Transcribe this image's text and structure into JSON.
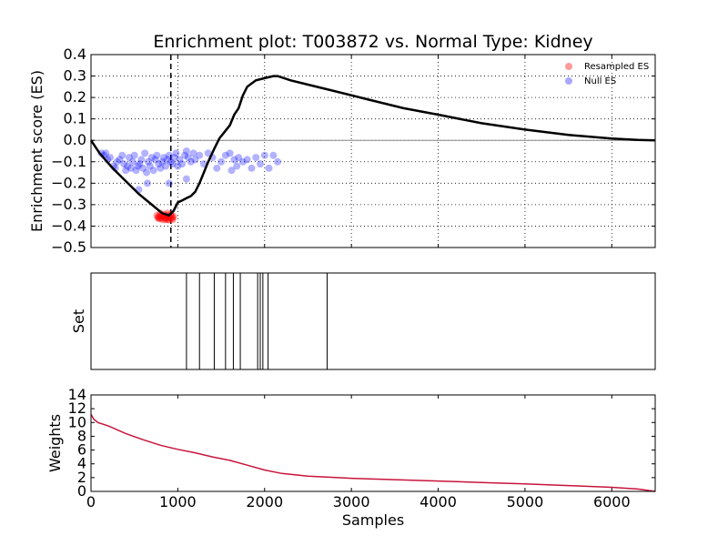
{
  "chart_data": [
    {
      "type": "line",
      "title": "Enrichment plot: T003872 vs. Normal Type: Kidney",
      "ylabel": "Enrichment score (ES)",
      "xlim": [
        0,
        6500
      ],
      "ylim": [
        -0.5,
        0.4
      ],
      "yticks": [
        "0.4",
        "0.3",
        "0.2",
        "0.1",
        "0.0",
        "−0.1",
        "−0.2",
        "−0.3",
        "−0.4",
        "−0.5"
      ],
      "ytick_values": [
        0.4,
        0.3,
        0.2,
        0.1,
        0.0,
        -0.1,
        -0.2,
        -0.3,
        -0.4,
        -0.5
      ],
      "xtick_values": [
        0,
        1000,
        2000,
        3000,
        4000,
        5000,
        6000
      ],
      "grid": true,
      "legend_position": "top-right",
      "legend": [
        {
          "label": "Resampled ES",
          "color": "#ff9a9a"
        },
        {
          "label": "Null ES",
          "color": "#8c8cff"
        }
      ],
      "vline_x": 920,
      "hline_y": 0.0,
      "es_curve": {
        "x": [
          0,
          100,
          250,
          400,
          550,
          700,
          820,
          900,
          950,
          1000,
          1050,
          1100,
          1150,
          1200,
          1250,
          1300,
          1350,
          1420,
          1480,
          1540,
          1600,
          1650,
          1700,
          1750,
          1800,
          1900,
          2000,
          2100,
          2150,
          2300,
          2500,
          2800,
          3200,
          3600,
          4000,
          4500,
          5000,
          5500,
          6000,
          6300,
          6500
        ],
        "y": [
          0.0,
          -0.06,
          -0.13,
          -0.19,
          -0.25,
          -0.3,
          -0.34,
          -0.35,
          -0.33,
          -0.29,
          -0.28,
          -0.27,
          -0.26,
          -0.24,
          -0.2,
          -0.15,
          -0.1,
          -0.04,
          0.01,
          0.04,
          0.07,
          0.12,
          0.15,
          0.21,
          0.25,
          0.28,
          0.29,
          0.3,
          0.3,
          0.28,
          0.26,
          0.23,
          0.19,
          0.15,
          0.12,
          0.08,
          0.05,
          0.025,
          0.008,
          0.002,
          0.0
        ]
      },
      "resampled_es": {
        "x": [
          760,
          770,
          780,
          790,
          800,
          810,
          820,
          830,
          840,
          850,
          860,
          870,
          880,
          890,
          900,
          910,
          920,
          930,
          940,
          950,
          800,
          840,
          880,
          920,
          780,
          860,
          900,
          940
        ],
        "y": [
          -0.35,
          -0.36,
          -0.355,
          -0.36,
          -0.365,
          -0.35,
          -0.36,
          -0.37,
          -0.355,
          -0.36,
          -0.365,
          -0.35,
          -0.36,
          -0.37,
          -0.355,
          -0.36,
          -0.35,
          -0.365,
          -0.36,
          -0.355,
          -0.34,
          -0.345,
          -0.34,
          -0.345,
          -0.365,
          -0.37,
          -0.37,
          -0.37
        ]
      },
      "null_es": {
        "x": [
          120,
          150,
          170,
          190,
          220,
          260,
          280,
          300,
          330,
          360,
          380,
          400,
          420,
          440,
          460,
          480,
          500,
          520,
          540,
          560,
          580,
          600,
          620,
          640,
          660,
          680,
          700,
          720,
          740,
          760,
          780,
          800,
          820,
          840,
          860,
          880,
          900,
          920,
          940,
          960,
          980,
          1000,
          1020,
          1050,
          1080,
          1100,
          1120,
          1150,
          1180,
          1200,
          1250,
          1300,
          1350,
          1400,
          1450,
          1500,
          1550,
          1600,
          1620,
          1650,
          1680,
          1700,
          1750,
          1800,
          1850,
          1900,
          1950,
          2000,
          2050,
          2100,
          2150,
          550,
          650,
          900,
          1100
        ],
        "y": [
          -0.06,
          -0.07,
          -0.06,
          -0.09,
          -0.08,
          -0.12,
          -0.13,
          -0.1,
          -0.09,
          -0.07,
          -0.11,
          -0.14,
          -0.12,
          -0.08,
          -0.13,
          -0.1,
          -0.07,
          -0.14,
          -0.12,
          -0.11,
          -0.09,
          -0.13,
          -0.06,
          -0.15,
          -0.1,
          -0.12,
          -0.08,
          -0.14,
          -0.09,
          -0.07,
          -0.11,
          -0.13,
          -0.1,
          -0.08,
          -0.12,
          -0.09,
          -0.07,
          -0.1,
          -0.11,
          -0.08,
          -0.06,
          -0.12,
          -0.09,
          -0.11,
          -0.07,
          -0.05,
          -0.08,
          -0.1,
          -0.06,
          -0.09,
          -0.07,
          -0.11,
          -0.06,
          -0.08,
          -0.13,
          -0.1,
          -0.07,
          -0.06,
          -0.14,
          -0.09,
          -0.12,
          -0.08,
          -0.1,
          -0.09,
          -0.13,
          -0.08,
          -0.11,
          -0.07,
          -0.13,
          -0.07,
          -0.1,
          -0.23,
          -0.2,
          -0.2,
          -0.18
        ]
      }
    },
    {
      "type": "bar",
      "ylabel": "Set",
      "xlim": [
        0,
        6500
      ],
      "hits": [
        1100,
        1250,
        1420,
        1550,
        1640,
        1720,
        1920,
        1950,
        1980,
        2040,
        2720
      ]
    },
    {
      "type": "area",
      "ylabel": "Weights",
      "xlabel": "Samples",
      "xlim": [
        0,
        6500
      ],
      "ylim": [
        0,
        14
      ],
      "xticks": [
        "0",
        "1000",
        "2000",
        "3000",
        "4000",
        "5000",
        "6000"
      ],
      "xtick_values": [
        0,
        1000,
        2000,
        3000,
        4000,
        5000,
        6000
      ],
      "yticks": [
        "14",
        "12",
        "10",
        "8",
        "6",
        "4",
        "2",
        "0"
      ],
      "ytick_values": [
        14,
        12,
        10,
        8,
        6,
        4,
        2,
        0
      ],
      "color": "#c8143c",
      "x": [
        0,
        30,
        80,
        200,
        400,
        600,
        800,
        1000,
        1200,
        1400,
        1600,
        1800,
        2000,
        2200,
        2500,
        3000,
        3500,
        4000,
        4500,
        5000,
        5500,
        6000,
        6300,
        6500
      ],
      "y": [
        11.2,
        10.5,
        10.0,
        9.5,
        8.4,
        7.5,
        6.7,
        6.1,
        5.6,
        5.0,
        4.5,
        3.8,
        3.1,
        2.6,
        2.2,
        1.9,
        1.7,
        1.5,
        1.3,
        1.1,
        0.85,
        0.6,
        0.35,
        0.0
      ]
    }
  ]
}
